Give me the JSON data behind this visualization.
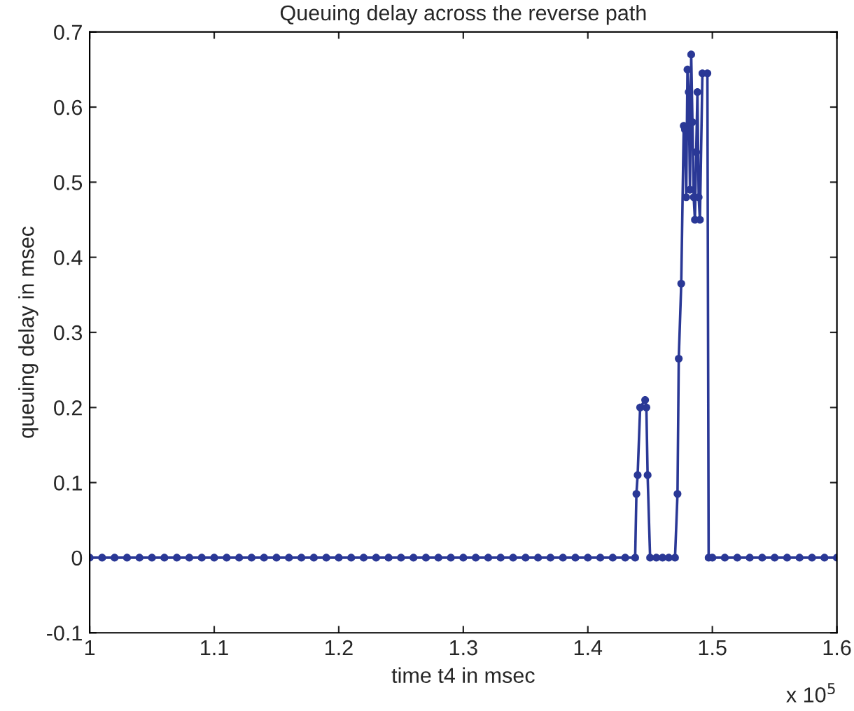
{
  "chart_data": {
    "type": "line",
    "title": "Queuing delay across the reverse path",
    "xlabel": "time t4 in msec",
    "ylabel": "queuing delay in msec",
    "annotations": [
      "x 10$^{5}$"
    ],
    "series": [
      {
        "color": "#2a3896",
        "x": [
          1.0,
          1.01,
          1.02,
          1.03,
          1.04,
          1.05,
          1.06,
          1.07,
          1.08,
          1.09,
          1.1,
          1.11,
          1.12,
          1.13,
          1.14,
          1.15,
          1.16,
          1.17,
          1.18,
          1.19,
          1.2,
          1.21,
          1.22,
          1.23,
          1.24,
          1.25,
          1.26,
          1.27,
          1.28,
          1.29,
          1.3,
          1.31,
          1.32,
          1.33,
          1.34,
          1.35,
          1.36,
          1.37,
          1.38,
          1.39,
          1.4,
          1.41,
          1.42,
          1.43,
          1.438,
          1.439,
          1.44,
          1.442,
          1.446,
          1.447,
          1.448,
          1.45,
          1.455,
          1.46,
          1.465,
          1.47,
          1.472,
          1.473,
          1.475,
          1.477,
          1.478,
          1.479,
          1.48,
          1.481,
          1.482,
          1.483,
          1.484,
          1.485,
          1.486,
          1.487,
          1.488,
          1.489,
          1.49,
          1.492,
          1.496,
          1.497,
          1.5,
          1.51,
          1.52,
          1.53,
          1.54,
          1.55,
          1.56,
          1.57,
          1.58,
          1.59,
          1.6
        ],
        "values": [
          0,
          0,
          0,
          0,
          0,
          0,
          0,
          0,
          0,
          0,
          0,
          0,
          0,
          0,
          0,
          0,
          0,
          0,
          0,
          0,
          0,
          0,
          0,
          0,
          0,
          0,
          0,
          0,
          0,
          0,
          0,
          0,
          0,
          0,
          0,
          0,
          0,
          0,
          0,
          0,
          0,
          0,
          0,
          0,
          0,
          0.085,
          0.11,
          0.2,
          0.21,
          0.2,
          0.11,
          0,
          0,
          0,
          0,
          0,
          0.085,
          0.265,
          0.365,
          0.575,
          0.57,
          0.48,
          0.65,
          0.62,
          0.49,
          0.67,
          0.58,
          0.48,
          0.45,
          0.54,
          0.62,
          0.48,
          0.45,
          0.645,
          0.645,
          0,
          0,
          0,
          0,
          0,
          0,
          0,
          0,
          0,
          0,
          0,
          0
        ]
      }
    ],
    "xlim": [
      1.0,
      1.6
    ],
    "xticks": [
      1,
      1.1,
      1.2,
      1.3,
      1.4,
      1.5,
      1.6
    ],
    "ylim": [
      -0.1,
      0.7
    ],
    "yticks": [
      -0.1,
      0,
      0.1,
      0.2,
      0.3,
      0.4,
      0.5,
      0.6,
      0.7
    ],
    "marker": "circle",
    "line_style": "solid",
    "grid": false,
    "legend": false
  }
}
